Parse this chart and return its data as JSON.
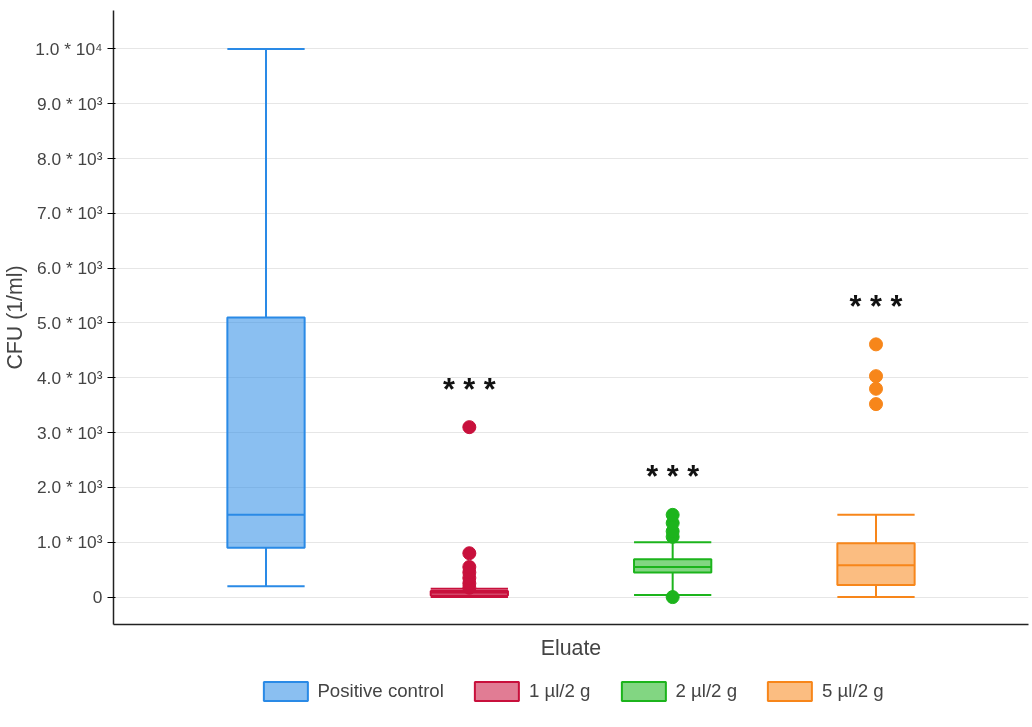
{
  "chart_data": {
    "type": "box",
    "xlabel": "Eluate",
    "ylabel": "CFU (1/ml)",
    "categories": [
      null,
      null,
      null,
      null
    ],
    "series": [
      {
        "name": "Positive control",
        "color": "#2a8ae6",
        "boxes": [
          {
            "low": 200,
            "q1": 900,
            "median": 1500,
            "q3": 5100,
            "high": 10000
          },
          null,
          null,
          null
        ]
      },
      {
        "name": "1 µl/2 g",
        "color": "#c8103c",
        "boxes": [
          null,
          {
            "low": 0,
            "q1": 30,
            "median": 80,
            "q3": 110,
            "high": 150,
            "outliers": [
              170,
              250,
              350,
              450,
              550,
              800,
              3100
            ]
          },
          null,
          null
        ]
      },
      {
        "name": "2 µl/2 g",
        "color": "#1cb41c",
        "boxes": [
          null,
          null,
          {
            "low": 40,
            "q1": 450,
            "median": 550,
            "q3": 690,
            "high": 1000,
            "outliers": [
              0,
              1100,
              1200,
              1350,
              1500
            ]
          },
          null
        ]
      },
      {
        "name": "5 µl/2 g",
        "color": "#f7861a",
        "boxes": [
          null,
          null,
          null,
          {
            "low": 0,
            "q1": 220,
            "median": 580,
            "q3": 980,
            "high": 1500,
            "outliers": [
              3520,
              3800,
              4030,
              4610
            ]
          }
        ]
      }
    ],
    "annotations": [
      "* * *",
      "* * *",
      "* * *"
    ],
    "ylim": [
      -500,
      10700
    ],
    "yticks": [
      0,
      {
        "value": 1000,
        "label": "1.0 * 10³"
      },
      {
        "value": 2000,
        "label": "2.0 * 10³"
      },
      {
        "value": 3000,
        "label": "3.0 * 10³"
      },
      {
        "value": 4000,
        "label": "4.0 * 10³"
      },
      {
        "value": 5000,
        "label": "5.0 * 10³"
      },
      {
        "value": 6000,
        "label": "6.0 * 10³"
      },
      {
        "value": 7000,
        "label": "7.0 * 10³"
      },
      {
        "value": 8000,
        "label": "8.0 * 10³"
      },
      {
        "value": 9000,
        "label": "9.0 * 10³"
      },
      {
        "value": 10000,
        "label": "1.0 * 10⁴"
      }
    ],
    "tick_labels": "y",
    "grid": "y",
    "legend": "bottom",
    "marker": "circle"
  }
}
